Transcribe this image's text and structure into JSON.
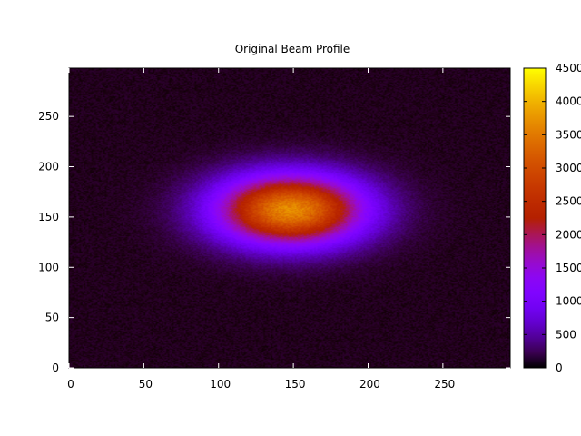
{
  "chart_data": {
    "type": "heatmap",
    "title": "Original Beam Profile",
    "xlabel": "",
    "ylabel": "",
    "xlim": [
      0,
      295
    ],
    "ylim": [
      0,
      298
    ],
    "x_ticks": [
      0,
      50,
      100,
      150,
      200,
      250
    ],
    "y_ticks": [
      0,
      50,
      100,
      150,
      200,
      250
    ],
    "colorbar": {
      "min": 0,
      "max": 4500,
      "ticks": [
        0,
        500,
        1000,
        1500,
        2000,
        2500,
        3000,
        3500,
        4000,
        4500
      ],
      "tick_labels": [
        "0",
        "500",
        "1000",
        "1500",
        "2000",
        "2500",
        "3000",
        "3500",
        "4000",
        "4500"
      ],
      "colormap": "gnuplot-rgbformulae-7-5-15",
      "colors": [
        "#000000",
        "#7a00ff",
        "#c41fc4",
        "#e84d00",
        "#ffd000",
        "#ffff00"
      ]
    },
    "beam": {
      "center_x": 148,
      "center_y": 157,
      "sigma_x": 34,
      "sigma_y": 24,
      "peak_value": 3600,
      "background_value": 80,
      "noise_amplitude": 60
    },
    "grid": false
  }
}
